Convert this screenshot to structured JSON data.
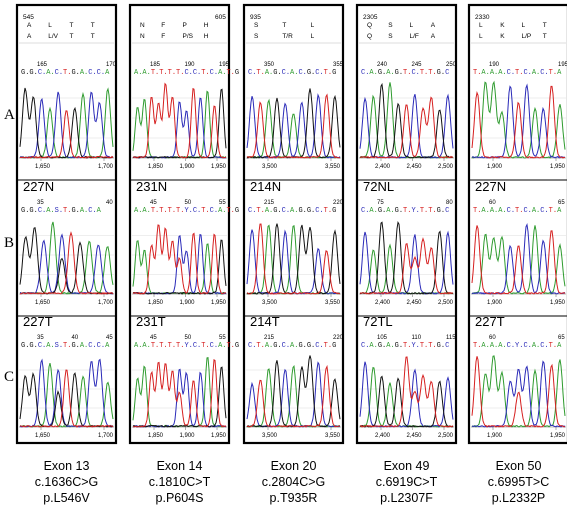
{
  "row_labels": [
    "A",
    "B",
    "C"
  ],
  "colors": {
    "A": "#2e9b2e",
    "C": "#2a2ab8",
    "G": "#111111",
    "T": "#d62020",
    "mutation_codon": "#2a2ab8",
    "panel_border": "#000000"
  },
  "panels": [
    {
      "exon": "Exon 13",
      "cdna": "c.1636C>G",
      "protein": "p.L546V",
      "header": {
        "pos": "545",
        "pos2": "",
        "aa1": [
          "A",
          "L",
          "T",
          "T"
        ],
        "aa2": [
          "A",
          "L/V",
          "T",
          "T"
        ],
        "mut_index": 1
      },
      "rows": [
        {
          "sample": "",
          "seq": "G.G.C.A.C.T.G.A.C.C.A",
          "ticks_top": [
            "165",
            "170"
          ],
          "ticks_bottom": [
            "1,650",
            "1,700"
          ]
        },
        {
          "sample": "227N",
          "seq": "G.G.C.A.S.T.G.A.C.A",
          "ticks_top": [
            "35",
            "40"
          ],
          "ticks_bottom": [
            "1,650",
            "1,700"
          ]
        },
        {
          "sample": "227T",
          "seq": "G.G.C.A.S.T.G.A.C.C.A",
          "ticks_top": [
            "35",
            "40",
            "45"
          ],
          "ticks_bottom": [
            "1,650",
            "1,700"
          ]
        }
      ]
    },
    {
      "exon": "Exon 14",
      "cdna": "c.1810C>T",
      "protein": "p.P604S",
      "header": {
        "pos": "",
        "pos2": "605",
        "aa1": [
          "N",
          "F",
          "P",
          "H"
        ],
        "aa2": [
          "N",
          "F",
          "P/S",
          "H"
        ],
        "mut_index": 2
      },
      "rows": [
        {
          "sample": "",
          "seq": "A.A.T.T.T.T.C.C.T.C.A.T.G",
          "ticks_top": [
            "185",
            "190",
            "195"
          ],
          "ticks_bottom": [
            "1,850",
            "1,900",
            "1,950"
          ]
        },
        {
          "sample": "231N",
          "seq": "A.A.T.T.T.T.Y.C.T.C.A.T.G",
          "ticks_top": [
            "45",
            "50",
            "55"
          ],
          "ticks_bottom": [
            "1,850",
            "1,900",
            "1,950"
          ]
        },
        {
          "sample": "231T",
          "seq": "A.A.T.T.T.T.Y.C.T.C.A.T.G",
          "ticks_top": [
            "45",
            "50",
            "55"
          ],
          "ticks_bottom": [
            "1,850",
            "1,900",
            "1,950"
          ]
        }
      ]
    },
    {
      "exon": "Exon 20",
      "cdna": "c.2804C>G",
      "protein": "p.T935R",
      "header": {
        "pos": "935",
        "pos2": "",
        "aa1": [
          "S",
          "T",
          "L"
        ],
        "aa2": [
          "S",
          "T/R",
          "L"
        ],
        "mut_index": 1
      },
      "rows": [
        {
          "sample": "",
          "seq": "C.T.A.G.C.A.C.G.C.T.G",
          "ticks_top": [
            "350",
            "355"
          ],
          "ticks_bottom": [
            "3,500",
            "3,550"
          ]
        },
        {
          "sample": "214N",
          "seq": "C.T.A.G.C.A.G.G.C.T.G",
          "ticks_top": [
            "215",
            "220"
          ],
          "ticks_bottom": [
            "3,500",
            "3,550"
          ]
        },
        {
          "sample": "214T",
          "seq": "C.T.A.G.C.A.G.G.C.T.G",
          "ticks_top": [
            "215",
            "220"
          ],
          "ticks_bottom": [
            "3,500",
            "3,550"
          ]
        }
      ]
    },
    {
      "exon": "Exon 49",
      "cdna": "c.6919C>T",
      "protein": "p.L2307F",
      "header": {
        "pos": "2305",
        "pos2": "",
        "aa1": [
          "Q",
          "S",
          "L",
          "A"
        ],
        "aa2": [
          "Q",
          "S",
          "L/F",
          "A"
        ],
        "mut_index": 2
      },
      "rows": [
        {
          "sample": "",
          "seq": "C.A.G.A.G.T.C.T.T.G.C",
          "ticks_top": [
            "240",
            "245",
            "250"
          ],
          "ticks_bottom": [
            "2,400",
            "2,450",
            "2,500"
          ]
        },
        {
          "sample": "72NL",
          "seq": "C.A.G.A.G.T.Y.T.T.G.C",
          "ticks_top": [
            "75",
            "80"
          ],
          "ticks_bottom": [
            "2,400",
            "2,450",
            "2,500"
          ]
        },
        {
          "sample": "72TL",
          "seq": "C.A.G.A.G.T.Y.T.T.G.C",
          "ticks_top": [
            "105",
            "110",
            "115"
          ],
          "ticks_bottom": [
            "2,400",
            "2,450",
            "2,500"
          ]
        }
      ]
    },
    {
      "exon": "Exon 50",
      "cdna": "c.6995T>C",
      "protein": "p.L2332P",
      "header": {
        "pos": "2330",
        "pos2": "",
        "aa1": [
          "L",
          "K",
          "L",
          "T"
        ],
        "aa2": [
          "L",
          "K",
          "L/P",
          "T"
        ],
        "mut_index": 2
      },
      "rows": [
        {
          "sample": "",
          "seq": "T.A.A.A.C.T.C.A.C.T.A",
          "ticks_top": [
            "190",
            "195"
          ],
          "ticks_bottom": [
            "1,900",
            "1,950"
          ]
        },
        {
          "sample": "227N",
          "seq": "T.A.A.A.C.T.C.A.C.T.A",
          "ticks_top": [
            "60",
            "65"
          ],
          "ticks_bottom": [
            "1,900",
            "1,950"
          ]
        },
        {
          "sample": "227T",
          "seq": "T.A.A.A.C.Y.C.A.C.T.A",
          "ticks_top": [
            "60",
            "65"
          ],
          "ticks_bottom": [
            "1,900",
            "1,950"
          ]
        }
      ]
    }
  ]
}
